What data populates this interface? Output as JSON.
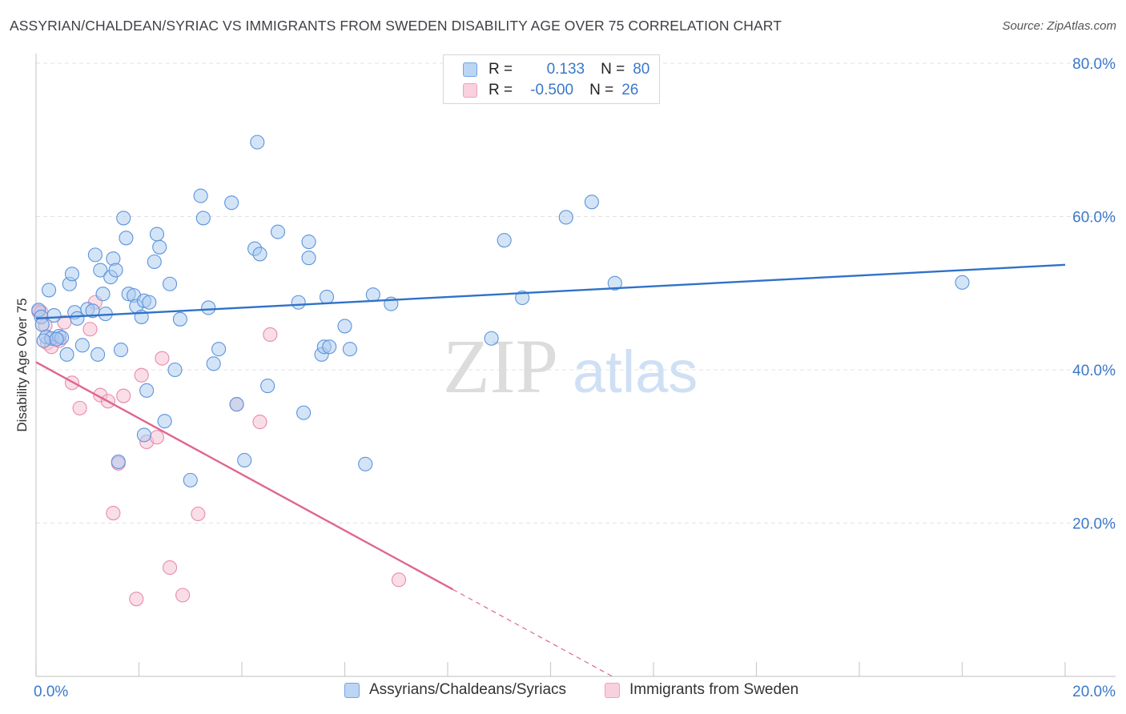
{
  "title": "ASSYRIAN/CHALDEAN/SYRIAC VS IMMIGRANTS FROM SWEDEN DISABILITY AGE OVER 75 CORRELATION CHART",
  "source": "Source: ZipAtlas.com",
  "watermark": {
    "zip": "ZIP",
    "atlas": "atlas"
  },
  "legend": {
    "rows": [
      {
        "r_label": "R =",
        "r_value": "0.133",
        "n_label": "N =",
        "n_value": "80",
        "color": "#6ea4e8"
      },
      {
        "r_label": "R =",
        "r_value": "-0.500",
        "n_label": "N =",
        "n_value": "26",
        "color": "#f0a0bd"
      }
    ]
  },
  "bottom_legend": [
    {
      "label": "Assyrians/Chaldeans/Syriacs",
      "color": "#6ea4e8"
    },
    {
      "label": "Immigrants from Sweden",
      "color": "#f0a0bd"
    }
  ],
  "colors": {
    "blue_fill": "#a9c9f0",
    "blue_stroke": "#5b94dc",
    "blue_line": "#2f72c8",
    "pink_fill": "#f6c3d4",
    "pink_stroke": "#e98aa9",
    "pink_line": "#e0658f",
    "grid": "#e3e3e3",
    "axis": "#cccccc",
    "tick_text": "#3a78c9"
  },
  "chart_data": {
    "type": "scatter",
    "title": "ASSYRIAN/CHALDEAN/SYRIAC VS IMMIGRANTS FROM SWEDEN DISABILITY AGE OVER 75 CORRELATION CHART",
    "xlabel": "",
    "ylabel": "Disability Age Over 75",
    "xlim": [
      0,
      20
    ],
    "ylim": [
      0,
      80
    ],
    "x_tick_labels": [
      "0.0%",
      "20.0%"
    ],
    "y_tick_labels": [
      "20.0%",
      "40.0%",
      "60.0%",
      "80.0%"
    ],
    "y_ticks": [
      20,
      40,
      60,
      80
    ],
    "grid": true,
    "legend_position": "top-center",
    "series": [
      {
        "name": "Assyrians/Chaldeans/Syriacs",
        "R": 0.133,
        "N": 80,
        "trend": {
          "x0": 0,
          "y0": 46.7,
          "x1": 20,
          "y1": 53.7
        },
        "points": [
          [
            0.05,
            47.8
          ],
          [
            0.1,
            46.9
          ],
          [
            0.12,
            45.9
          ],
          [
            0.2,
            44.3
          ],
          [
            0.25,
            50.4
          ],
          [
            0.3,
            44.1
          ],
          [
            0.35,
            47.1
          ],
          [
            0.45,
            44.4
          ],
          [
            0.5,
            44.2
          ],
          [
            0.6,
            42.0
          ],
          [
            0.65,
            51.2
          ],
          [
            0.7,
            52.5
          ],
          [
            0.75,
            47.5
          ],
          [
            0.8,
            46.7
          ],
          [
            0.9,
            43.2
          ],
          [
            1.0,
            47.9
          ],
          [
            1.1,
            47.7
          ],
          [
            1.15,
            55.0
          ],
          [
            1.2,
            42.0
          ],
          [
            1.25,
            53.0
          ],
          [
            1.3,
            49.9
          ],
          [
            1.35,
            47.3
          ],
          [
            1.45,
            52.1
          ],
          [
            1.5,
            54.5
          ],
          [
            1.55,
            53.0
          ],
          [
            1.65,
            42.6
          ],
          [
            1.7,
            59.8
          ],
          [
            1.75,
            57.2
          ],
          [
            1.8,
            49.9
          ],
          [
            1.9,
            49.7
          ],
          [
            1.95,
            48.3
          ],
          [
            2.05,
            46.9
          ],
          [
            2.1,
            49.0
          ],
          [
            2.15,
            37.3
          ],
          [
            2.2,
            48.8
          ],
          [
            2.3,
            54.1
          ],
          [
            2.35,
            57.7
          ],
          [
            2.4,
            56.0
          ],
          [
            2.5,
            33.3
          ],
          [
            2.6,
            51.2
          ],
          [
            2.7,
            40.0
          ],
          [
            2.8,
            46.6
          ],
          [
            3.0,
            25.6
          ],
          [
            3.2,
            62.7
          ],
          [
            3.25,
            59.8
          ],
          [
            3.35,
            48.1
          ],
          [
            3.45,
            40.8
          ],
          [
            3.55,
            42.7
          ],
          [
            3.8,
            61.8
          ],
          [
            3.9,
            35.5
          ],
          [
            4.05,
            28.2
          ],
          [
            4.25,
            55.8
          ],
          [
            4.3,
            69.7
          ],
          [
            4.35,
            55.1
          ],
          [
            4.5,
            37.9
          ],
          [
            4.7,
            58.0
          ],
          [
            5.1,
            48.8
          ],
          [
            5.2,
            34.4
          ],
          [
            5.3,
            56.7
          ],
          [
            5.3,
            54.6
          ],
          [
            5.55,
            42.0
          ],
          [
            5.6,
            43.0
          ],
          [
            5.65,
            49.5
          ],
          [
            5.7,
            43.0
          ],
          [
            6.0,
            45.7
          ],
          [
            6.1,
            42.7
          ],
          [
            6.4,
            27.7
          ],
          [
            6.55,
            49.8
          ],
          [
            6.9,
            48.6
          ],
          [
            8.85,
            44.1
          ],
          [
            9.1,
            56.9
          ],
          [
            9.45,
            49.4
          ],
          [
            10.3,
            59.9
          ],
          [
            10.8,
            61.9
          ],
          [
            11.25,
            51.3
          ],
          [
            18.0,
            51.4
          ],
          [
            1.6,
            28.0
          ],
          [
            2.1,
            31.5
          ],
          [
            0.15,
            43.8
          ],
          [
            0.4,
            44.0
          ]
        ]
      },
      {
        "name": "Immigrants from Sweden",
        "R": -0.5,
        "N": 26,
        "trend": {
          "x0": 0,
          "y0": 41.0,
          "x1": 11.2,
          "y1": 0,
          "solid_until_x": 8.1
        },
        "points": [
          [
            0.05,
            47.6
          ],
          [
            0.1,
            47.5
          ],
          [
            0.18,
            45.8
          ],
          [
            0.22,
            43.5
          ],
          [
            0.3,
            43.0
          ],
          [
            0.45,
            43.8
          ],
          [
            0.55,
            46.2
          ],
          [
            0.7,
            38.3
          ],
          [
            0.85,
            35.0
          ],
          [
            1.05,
            45.3
          ],
          [
            1.15,
            48.8
          ],
          [
            1.25,
            36.7
          ],
          [
            1.4,
            35.9
          ],
          [
            1.5,
            21.3
          ],
          [
            1.6,
            27.8
          ],
          [
            1.7,
            36.6
          ],
          [
            1.95,
            10.1
          ],
          [
            2.05,
            39.3
          ],
          [
            2.15,
            30.6
          ],
          [
            2.35,
            31.2
          ],
          [
            2.45,
            41.5
          ],
          [
            2.6,
            14.2
          ],
          [
            2.85,
            10.6
          ],
          [
            3.15,
            21.2
          ],
          [
            3.9,
            35.5
          ],
          [
            4.35,
            33.2
          ]
        ],
        "extra_points": [
          [
            4.55,
            44.6
          ],
          [
            7.05,
            12.6
          ]
        ]
      }
    ]
  }
}
